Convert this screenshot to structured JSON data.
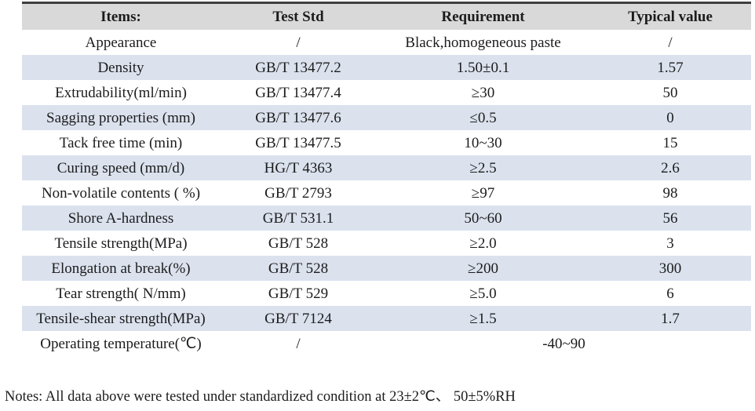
{
  "table": {
    "headers": {
      "items": "Items:",
      "std": "Test Std",
      "req": "Requirement",
      "typ": "Typical value"
    },
    "rows": [
      {
        "item": "Appearance",
        "std": "/",
        "req": "Black,homogeneous paste",
        "typ": "/"
      },
      {
        "item": "Density",
        "std": "GB/T 13477.2",
        "req": "1.50±0.1",
        "typ": "1.57"
      },
      {
        "item": "Extrudability(ml/min)",
        "std": "GB/T 13477.4",
        "req": "≥30",
        "typ": "50"
      },
      {
        "item": "Sagging properties (mm)",
        "std": "GB/T 13477.6",
        "req": "≤0.5",
        "typ": "0"
      },
      {
        "item": "Tack free time (min)",
        "std": "GB/T 13477.5",
        "req": "10~30",
        "typ": "15"
      },
      {
        "item": "Curing speed (mm/d)",
        "std": "HG/T 4363",
        "req": "≥2.5",
        "typ": "2.6"
      },
      {
        "item": "Non-volatile contents ( %)",
        "std": "GB/T 2793",
        "req": "≥97",
        "typ": "98"
      },
      {
        "item": "Shore A-hardness",
        "std": "GB/T 531.1",
        "req": "50~60",
        "typ": "56"
      },
      {
        "item": "Tensile strength(MPa)",
        "std": "GB/T 528",
        "req": "≥2.0",
        "typ": "3"
      },
      {
        "item": "Elongation at break(%)",
        "std": "GB/T 528",
        "req": "≥200",
        "typ": "300"
      },
      {
        "item": "Tear strength( N/mm)",
        "std": "GB/T 529",
        "req": "≥5.0",
        "typ": "6"
      },
      {
        "item": "Tensile-shear strength(MPa)",
        "std": "GB/T 7124",
        "req": "≥1.5",
        "typ": "1.7"
      }
    ],
    "last_row": {
      "item": "Operating temperature(℃)",
      "std": "/",
      "merged": "-40~90"
    }
  },
  "notes": "Notes: All data above were tested under standardized condition at 23±2℃、 50±5%RH",
  "colors": {
    "header_bg": "#d9d9d9",
    "stripe_bg": "#dbe2ee",
    "top_border": "#3f3f3f"
  }
}
